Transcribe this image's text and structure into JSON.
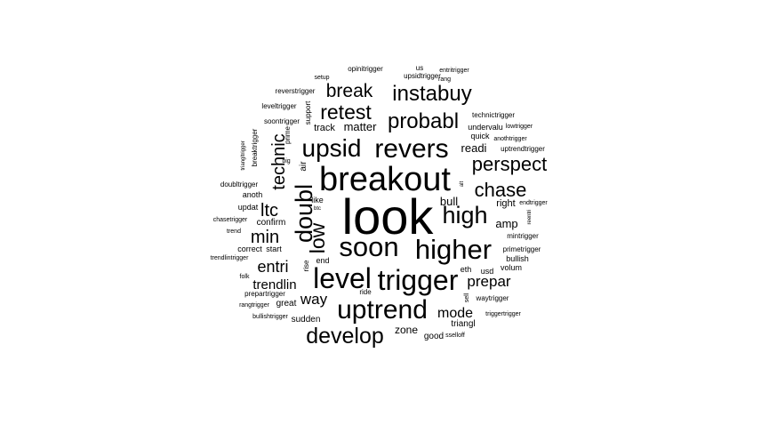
{
  "words": [
    {
      "text": "look",
      "size": 5
    },
    {
      "text": "breakout",
      "size": 4
    },
    {
      "text": "trigger",
      "size": 3.5
    },
    {
      "text": "level",
      "size": 3.5
    },
    {
      "text": "higher",
      "size": 3.4
    },
    {
      "text": "soon",
      "size": 3.4
    },
    {
      "text": "revers",
      "size": 3.3
    },
    {
      "text": "uptrend",
      "size": 3.2
    },
    {
      "text": "upsid",
      "size": 3.0
    },
    {
      "text": "doubl",
      "size": 3.0
    },
    {
      "text": "high",
      "size": 2.9
    },
    {
      "text": "develop",
      "size": 2.8
    },
    {
      "text": "probabl",
      "size": 2.7
    },
    {
      "text": "instabuy",
      "size": 2.6
    },
    {
      "text": "retest",
      "size": 2.6
    },
    {
      "text": "perspect",
      "size": 2.5
    },
    {
      "text": "chase",
      "size": 2.5
    },
    {
      "text": "low",
      "size": 2.5
    },
    {
      "text": "break",
      "size": 2.4
    },
    {
      "text": "technic",
      "size": 2.4
    },
    {
      "text": "min",
      "size": 2.3
    },
    {
      "text": "ltc",
      "size": 2.3
    },
    {
      "text": "entri",
      "size": 2.1
    },
    {
      "text": "prepar",
      "size": 2.0
    },
    {
      "text": "way",
      "size": 2.0
    },
    {
      "text": "mode",
      "size": 1.9
    },
    {
      "text": "trendlin",
      "size": 1.8
    },
    {
      "text": "amp",
      "size": 1.6
    },
    {
      "text": "readi",
      "size": 1.5
    },
    {
      "text": "bull",
      "size": 1.5
    },
    {
      "text": "matter",
      "size": 1.5
    },
    {
      "text": "zone",
      "size": 1.4
    },
    {
      "text": "right",
      "size": 1.4
    },
    {
      "text": "track",
      "size": 1.3
    },
    {
      "text": "sudden",
      "size": 1.2
    },
    {
      "text": "great",
      "size": 1.2
    },
    {
      "text": "good",
      "size": 1.2
    },
    {
      "text": "confirm",
      "size": 1.2
    },
    {
      "text": "triangl",
      "size": 1.2
    },
    {
      "text": "air",
      "size": 1.2
    },
    {
      "text": "like",
      "size": 1.1
    },
    {
      "text": "updat",
      "size": 1.1
    },
    {
      "text": "anoth",
      "size": 1.1
    },
    {
      "text": "correct",
      "size": 1.1
    },
    {
      "text": "start",
      "size": 1.1
    },
    {
      "text": "end",
      "size": 1.1
    },
    {
      "text": "eth",
      "size": 1.1
    },
    {
      "text": "usd",
      "size": 1.1
    },
    {
      "text": "volum",
      "size": 1.1
    },
    {
      "text": "bullish",
      "size": 1.1
    },
    {
      "text": "quick",
      "size": 1.1
    },
    {
      "text": "undervalu",
      "size": 1.1
    },
    {
      "text": "support",
      "size": 1.0
    },
    {
      "text": "rise",
      "size": 1.0
    },
    {
      "text": "ride",
      "size": 1.0
    },
    {
      "text": "prime",
      "size": 1.0
    },
    {
      "text": "sell",
      "size": 0.9
    },
    {
      "text": "reverstrigger",
      "size": 1.0
    },
    {
      "text": "leveltrigger",
      "size": 1.0
    },
    {
      "text": "soontrigger",
      "size": 1.0
    },
    {
      "text": "breaktrigger",
      "size": 1.0
    },
    {
      "text": "doubltrigger",
      "size": 1.0
    },
    {
      "text": "chasetrigger",
      "size": 0.9
    },
    {
      "text": "trendlintrigger",
      "size": 0.9
    },
    {
      "text": "prepartrigger",
      "size": 1.0
    },
    {
      "text": "rangtrigger",
      "size": 0.9
    },
    {
      "text": "bullishtrigger",
      "size": 0.9
    },
    {
      "text": "upsidtrigger",
      "size": 1.0
    },
    {
      "text": "technictrigger",
      "size": 1.0
    },
    {
      "text": "anothtrigger",
      "size": 0.9
    },
    {
      "text": "uptrendtrigger",
      "size": 1.0
    },
    {
      "text": "mintrigger",
      "size": 1.0
    },
    {
      "text": "primetrigger",
      "size": 1.0
    },
    {
      "text": "waytrigger",
      "size": 1.0
    },
    {
      "text": "triggertrigger",
      "size": 0.9
    },
    {
      "text": "opinitrigger",
      "size": 0.9
    },
    {
      "text": "entritrigger",
      "size": 0.9
    },
    {
      "text": "lowtrigger",
      "size": 0.9
    },
    {
      "text": "endtrigger",
      "size": 0.9
    },
    {
      "text": "triangltrigger",
      "size": 0.8
    },
    {
      "text": "sselloff",
      "size": 0.9
    },
    {
      "text": "setup",
      "size": 0.9
    },
    {
      "text": "rang",
      "size": 0.9
    },
    {
      "text": "trend",
      "size": 0.9
    },
    {
      "text": "folk",
      "size": 0.9
    },
    {
      "text": "big",
      "size": 0.9
    },
    {
      "text": "btc",
      "size": 0.8
    },
    {
      "text": "alt",
      "size": 0.8
    },
    {
      "text": "reentri",
      "size": 0.8
    },
    {
      "text": "us",
      "size": 0.9
    }
  ]
}
